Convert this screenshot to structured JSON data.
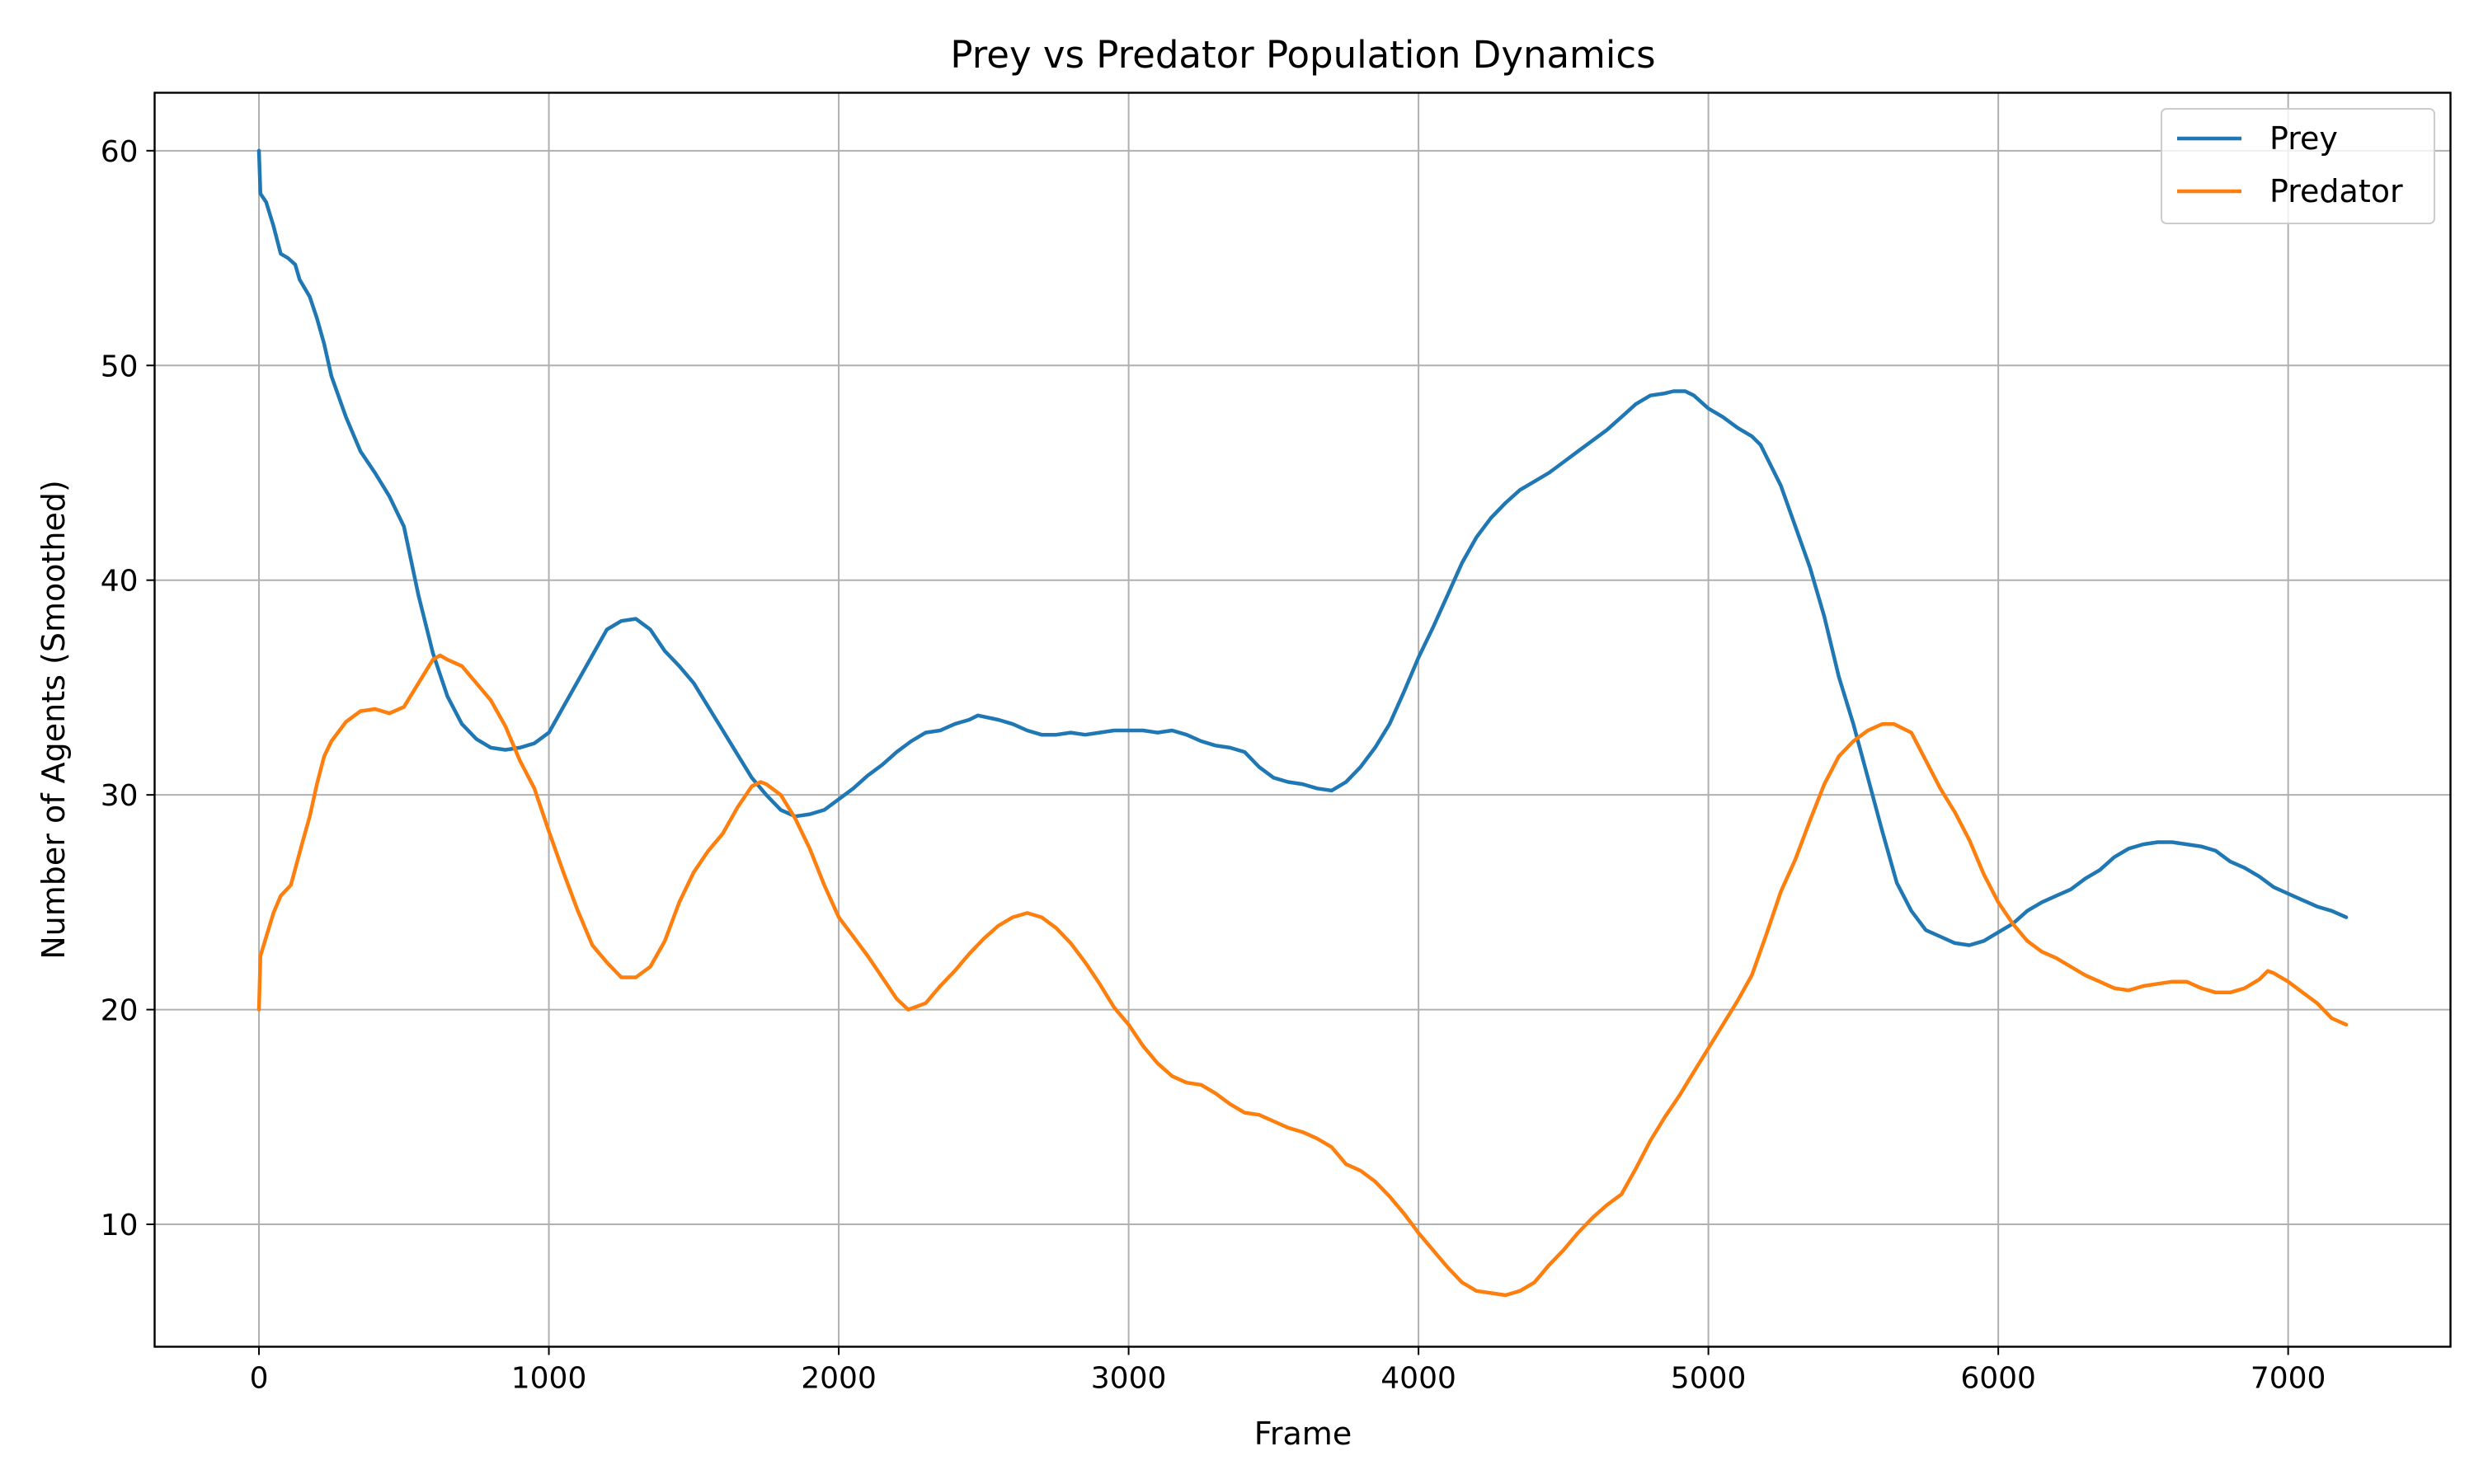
{
  "chart_data": {
    "type": "line",
    "title": "Prey vs Predator Population Dynamics",
    "xlabel": "Frame",
    "ylabel": "Number of Agents (Smoothed)",
    "xlim": [
      -360,
      7560
    ],
    "ylim": [
      4.3,
      62.7
    ],
    "xticks": [
      0,
      1000,
      2000,
      3000,
      4000,
      5000,
      6000,
      7000
    ],
    "yticks": [
      10,
      20,
      30,
      40,
      50,
      60
    ],
    "grid": true,
    "legend_position": "top-right",
    "series": [
      {
        "name": "Prey",
        "color": "#1f77b4",
        "points": [
          [
            0,
            60
          ],
          [
            5,
            58
          ],
          [
            25,
            57.6
          ],
          [
            50,
            56.5
          ],
          [
            75,
            55.2
          ],
          [
            100,
            55
          ],
          [
            125,
            54.7
          ],
          [
            140,
            54
          ],
          [
            175,
            53.2
          ],
          [
            200,
            52.2
          ],
          [
            225,
            51
          ],
          [
            250,
            49.5
          ],
          [
            300,
            47.6
          ],
          [
            350,
            46
          ],
          [
            400,
            45
          ],
          [
            450,
            43.9
          ],
          [
            500,
            42.5
          ],
          [
            550,
            39.3
          ],
          [
            600,
            36.6
          ],
          [
            650,
            34.6
          ],
          [
            700,
            33.3
          ],
          [
            750,
            32.6
          ],
          [
            800,
            32.2
          ],
          [
            850,
            32.1
          ],
          [
            900,
            32.2
          ],
          [
            950,
            32.4
          ],
          [
            1000,
            32.9
          ],
          [
            1050,
            34.1
          ],
          [
            1100,
            35.3
          ],
          [
            1150,
            36.5
          ],
          [
            1200,
            37.7
          ],
          [
            1250,
            38.1
          ],
          [
            1300,
            38.2
          ],
          [
            1350,
            37.7
          ],
          [
            1400,
            36.7
          ],
          [
            1450,
            36
          ],
          [
            1500,
            35.2
          ],
          [
            1550,
            34.1
          ],
          [
            1600,
            33
          ],
          [
            1650,
            31.9
          ],
          [
            1700,
            30.8
          ],
          [
            1750,
            30
          ],
          [
            1800,
            29.3
          ],
          [
            1850,
            29
          ],
          [
            1900,
            29.1
          ],
          [
            1950,
            29.3
          ],
          [
            2000,
            29.8
          ],
          [
            2050,
            30.3
          ],
          [
            2100,
            30.9
          ],
          [
            2150,
            31.4
          ],
          [
            2200,
            32
          ],
          [
            2250,
            32.5
          ],
          [
            2300,
            32.9
          ],
          [
            2350,
            33
          ],
          [
            2400,
            33.3
          ],
          [
            2450,
            33.5
          ],
          [
            2480,
            33.7
          ],
          [
            2550,
            33.5
          ],
          [
            2600,
            33.3
          ],
          [
            2650,
            33
          ],
          [
            2700,
            32.8
          ],
          [
            2750,
            32.8
          ],
          [
            2800,
            32.9
          ],
          [
            2850,
            32.8
          ],
          [
            2900,
            32.9
          ],
          [
            2950,
            33
          ],
          [
            3000,
            33
          ],
          [
            3050,
            33
          ],
          [
            3100,
            32.9
          ],
          [
            3150,
            33
          ],
          [
            3200,
            32.8
          ],
          [
            3250,
            32.5
          ],
          [
            3300,
            32.3
          ],
          [
            3350,
            32.2
          ],
          [
            3400,
            32
          ],
          [
            3450,
            31.3
          ],
          [
            3500,
            30.8
          ],
          [
            3550,
            30.6
          ],
          [
            3600,
            30.5
          ],
          [
            3650,
            30.3
          ],
          [
            3700,
            30.2
          ],
          [
            3750,
            30.6
          ],
          [
            3800,
            31.3
          ],
          [
            3850,
            32.2
          ],
          [
            3900,
            33.3
          ],
          [
            3950,
            34.8
          ],
          [
            4000,
            36.4
          ],
          [
            4050,
            37.8
          ],
          [
            4100,
            39.3
          ],
          [
            4150,
            40.8
          ],
          [
            4200,
            42
          ],
          [
            4250,
            42.9
          ],
          [
            4300,
            43.6
          ],
          [
            4350,
            44.2
          ],
          [
            4400,
            44.6
          ],
          [
            4450,
            45
          ],
          [
            4500,
            45.5
          ],
          [
            4550,
            46
          ],
          [
            4600,
            46.5
          ],
          [
            4650,
            47
          ],
          [
            4700,
            47.6
          ],
          [
            4750,
            48.2
          ],
          [
            4800,
            48.6
          ],
          [
            4850,
            48.7
          ],
          [
            4880,
            48.8
          ],
          [
            4920,
            48.8
          ],
          [
            4950,
            48.6
          ],
          [
            5000,
            48
          ],
          [
            5050,
            47.6
          ],
          [
            5100,
            47.1
          ],
          [
            5150,
            46.7
          ],
          [
            5180,
            46.3
          ],
          [
            5250,
            44.4
          ],
          [
            5300,
            42.5
          ],
          [
            5350,
            40.6
          ],
          [
            5400,
            38.3
          ],
          [
            5450,
            35.5
          ],
          [
            5500,
            33.3
          ],
          [
            5550,
            30.8
          ],
          [
            5600,
            28.3
          ],
          [
            5650,
            25.9
          ],
          [
            5700,
            24.6
          ],
          [
            5750,
            23.7
          ],
          [
            5800,
            23.4
          ],
          [
            5850,
            23.1
          ],
          [
            5900,
            23
          ],
          [
            5950,
            23.2
          ],
          [
            6000,
            23.6
          ],
          [
            6050,
            24
          ],
          [
            6100,
            24.6
          ],
          [
            6150,
            25
          ],
          [
            6200,
            25.3
          ],
          [
            6250,
            25.6
          ],
          [
            6300,
            26.1
          ],
          [
            6350,
            26.5
          ],
          [
            6400,
            27.1
          ],
          [
            6450,
            27.5
          ],
          [
            6500,
            27.7
          ],
          [
            6550,
            27.8
          ],
          [
            6600,
            27.8
          ],
          [
            6650,
            27.7
          ],
          [
            6700,
            27.6
          ],
          [
            6750,
            27.4
          ],
          [
            6800,
            26.9
          ],
          [
            6850,
            26.6
          ],
          [
            6900,
            26.2
          ],
          [
            6950,
            25.7
          ],
          [
            7000,
            25.4
          ],
          [
            7050,
            25.1
          ],
          [
            7100,
            24.8
          ],
          [
            7150,
            24.6
          ],
          [
            7200,
            24.3
          ]
        ]
      },
      {
        "name": "Predator",
        "color": "#ff7f0e",
        "points": [
          [
            0,
            20
          ],
          [
            5,
            22.5
          ],
          [
            50,
            24.5
          ],
          [
            75,
            25.3
          ],
          [
            110,
            25.8
          ],
          [
            150,
            27.8
          ],
          [
            175,
            29
          ],
          [
            200,
            30.5
          ],
          [
            225,
            31.8
          ],
          [
            250,
            32.5
          ],
          [
            300,
            33.4
          ],
          [
            350,
            33.9
          ],
          [
            400,
            34
          ],
          [
            450,
            33.8
          ],
          [
            500,
            34.1
          ],
          [
            550,
            35.2
          ],
          [
            600,
            36.3
          ],
          [
            625,
            36.5
          ],
          [
            650,
            36.3
          ],
          [
            700,
            36
          ],
          [
            750,
            35.2
          ],
          [
            800,
            34.4
          ],
          [
            850,
            33.2
          ],
          [
            900,
            31.6
          ],
          [
            950,
            30.3
          ],
          [
            1000,
            28.3
          ],
          [
            1050,
            26.4
          ],
          [
            1100,
            24.6
          ],
          [
            1150,
            23
          ],
          [
            1200,
            22.2
          ],
          [
            1250,
            21.5
          ],
          [
            1300,
            21.5
          ],
          [
            1350,
            22
          ],
          [
            1400,
            23.2
          ],
          [
            1450,
            25
          ],
          [
            1500,
            26.4
          ],
          [
            1550,
            27.4
          ],
          [
            1600,
            28.2
          ],
          [
            1650,
            29.4
          ],
          [
            1700,
            30.4
          ],
          [
            1730,
            30.6
          ],
          [
            1750,
            30.5
          ],
          [
            1800,
            30
          ],
          [
            1850,
            28.9
          ],
          [
            1900,
            27.5
          ],
          [
            1950,
            25.8
          ],
          [
            2000,
            24.3
          ],
          [
            2050,
            23.4
          ],
          [
            2100,
            22.5
          ],
          [
            2150,
            21.5
          ],
          [
            2200,
            20.5
          ],
          [
            2240,
            20
          ],
          [
            2300,
            20.3
          ],
          [
            2350,
            21.1
          ],
          [
            2400,
            21.8
          ],
          [
            2450,
            22.6
          ],
          [
            2500,
            23.3
          ],
          [
            2550,
            23.9
          ],
          [
            2600,
            24.3
          ],
          [
            2650,
            24.5
          ],
          [
            2700,
            24.3
          ],
          [
            2750,
            23.8
          ],
          [
            2800,
            23.1
          ],
          [
            2850,
            22.2
          ],
          [
            2900,
            21.2
          ],
          [
            2950,
            20.1
          ],
          [
            3000,
            19.3
          ],
          [
            3050,
            18.3
          ],
          [
            3100,
            17.5
          ],
          [
            3150,
            16.9
          ],
          [
            3200,
            16.6
          ],
          [
            3250,
            16.5
          ],
          [
            3300,
            16.1
          ],
          [
            3350,
            15.6
          ],
          [
            3400,
            15.2
          ],
          [
            3450,
            15.1
          ],
          [
            3500,
            14.8
          ],
          [
            3550,
            14.5
          ],
          [
            3600,
            14.3
          ],
          [
            3650,
            14
          ],
          [
            3700,
            13.6
          ],
          [
            3750,
            12.8
          ],
          [
            3800,
            12.5
          ],
          [
            3850,
            12
          ],
          [
            3900,
            11.3
          ],
          [
            3950,
            10.5
          ],
          [
            4000,
            9.6
          ],
          [
            4050,
            8.8
          ],
          [
            4100,
            8
          ],
          [
            4150,
            7.3
          ],
          [
            4200,
            6.9
          ],
          [
            4250,
            6.8
          ],
          [
            4300,
            6.7
          ],
          [
            4350,
            6.9
          ],
          [
            4400,
            7.3
          ],
          [
            4450,
            8.1
          ],
          [
            4500,
            8.8
          ],
          [
            4550,
            9.6
          ],
          [
            4600,
            10.3
          ],
          [
            4650,
            10.9
          ],
          [
            4700,
            11.4
          ],
          [
            4750,
            12.6
          ],
          [
            4800,
            13.9
          ],
          [
            4850,
            15
          ],
          [
            4900,
            16
          ],
          [
            4950,
            17.1
          ],
          [
            5000,
            18.2
          ],
          [
            5050,
            19.3
          ],
          [
            5100,
            20.4
          ],
          [
            5150,
            21.6
          ],
          [
            5200,
            23.5
          ],
          [
            5250,
            25.5
          ],
          [
            5300,
            27
          ],
          [
            5350,
            28.8
          ],
          [
            5400,
            30.5
          ],
          [
            5450,
            31.8
          ],
          [
            5500,
            32.5
          ],
          [
            5550,
            33
          ],
          [
            5600,
            33.3
          ],
          [
            5640,
            33.3
          ],
          [
            5700,
            32.9
          ],
          [
            5750,
            31.6
          ],
          [
            5800,
            30.3
          ],
          [
            5850,
            29.2
          ],
          [
            5900,
            27.9
          ],
          [
            5950,
            26.3
          ],
          [
            6000,
            25
          ],
          [
            6050,
            24
          ],
          [
            6100,
            23.2
          ],
          [
            6150,
            22.7
          ],
          [
            6200,
            22.4
          ],
          [
            6250,
            22
          ],
          [
            6300,
            21.6
          ],
          [
            6350,
            21.3
          ],
          [
            6400,
            21
          ],
          [
            6450,
            20.9
          ],
          [
            6500,
            21.1
          ],
          [
            6550,
            21.2
          ],
          [
            6600,
            21.3
          ],
          [
            6650,
            21.3
          ],
          [
            6700,
            21
          ],
          [
            6750,
            20.8
          ],
          [
            6800,
            20.8
          ],
          [
            6850,
            21
          ],
          [
            6900,
            21.4
          ],
          [
            6930,
            21.8
          ],
          [
            6950,
            21.7
          ],
          [
            7000,
            21.3
          ],
          [
            7050,
            20.8
          ],
          [
            7100,
            20.3
          ],
          [
            7150,
            19.6
          ],
          [
            7200,
            19.3
          ]
        ]
      }
    ]
  }
}
